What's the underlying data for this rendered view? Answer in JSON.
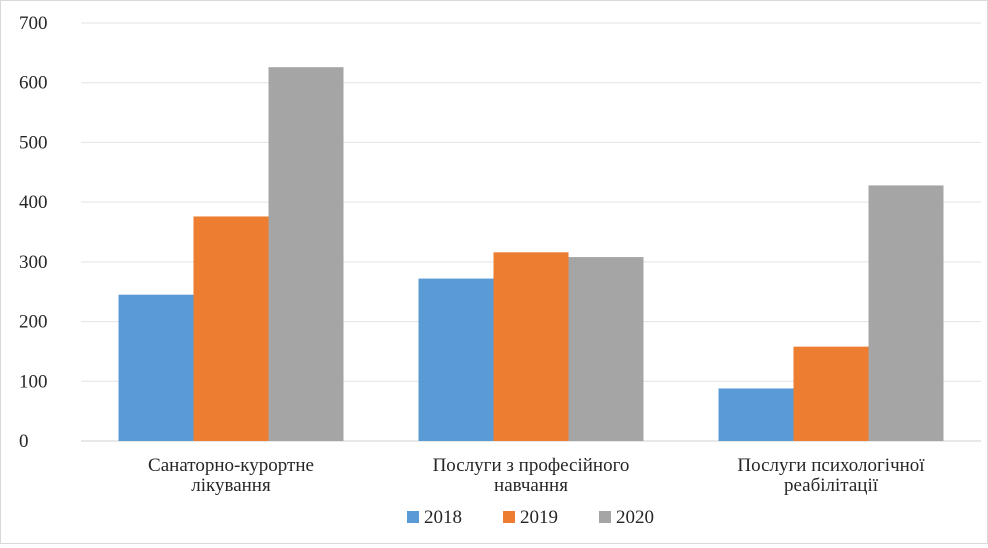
{
  "chart_data": {
    "type": "bar",
    "title": "",
    "xlabel": "",
    "ylabel": "",
    "ylim": [
      0,
      700
    ],
    "yticks": [
      0,
      100,
      200,
      300,
      400,
      500,
      600,
      700
    ],
    "grid": true,
    "legend_position": "bottom",
    "categories": [
      [
        "Санаторно-курортне",
        "лікування"
      ],
      [
        "Послуги з професійного",
        "навчання"
      ],
      [
        "Послуги психологічної",
        "реабілітації"
      ]
    ],
    "series": [
      {
        "name": "2018",
        "color": "#5b9bd5",
        "values": [
          245,
          272,
          88
        ]
      },
      {
        "name": "2019",
        "color": "#ed7d31",
        "values": [
          376,
          316,
          158
        ]
      },
      {
        "name": "2020",
        "color": "#a5a5a5",
        "values": [
          626,
          308,
          428
        ]
      }
    ]
  }
}
